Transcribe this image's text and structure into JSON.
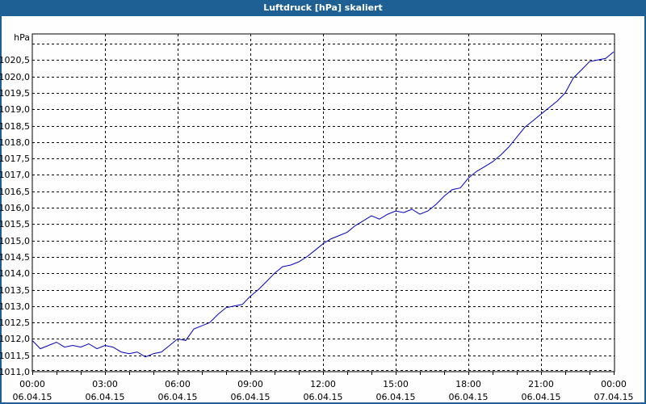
{
  "window": {
    "title": "Luftdruck [hPa] skaliert",
    "title_bar_color": "#1e6094"
  },
  "chart_data": {
    "type": "line",
    "title": "Luftdruck [hPa] skaliert",
    "xlabel": "",
    "ylabel": "hPa",
    "ylim": [
      1011.0,
      1021.0
    ],
    "grid": true,
    "line_color": "#0000c0",
    "y_ticks": [
      "1011,0",
      "1011,5",
      "1012,0",
      "1012,5",
      "1013,0",
      "1013,5",
      "1014,0",
      "1014,5",
      "1015,0",
      "1015,5",
      "1016,0",
      "1016,5",
      "1017,0",
      "1017,5",
      "1018,0",
      "1018,5",
      "1019,0",
      "1019,5",
      "1020,0",
      "1020,5"
    ],
    "x_ticks": [
      {
        "time": "00:00",
        "date": "06.04.15"
      },
      {
        "time": "03:00",
        "date": "06.04.15"
      },
      {
        "time": "06:00",
        "date": "06.04.15"
      },
      {
        "time": "09:00",
        "date": "06.04.15"
      },
      {
        "time": "12:00",
        "date": "06.04.15"
      },
      {
        "time": "15:00",
        "date": "06.04.15"
      },
      {
        "time": "18:00",
        "date": "06.04.15"
      },
      {
        "time": "21:00",
        "date": "06.04.15"
      },
      {
        "time": "00:00",
        "date": "07.04.15"
      }
    ],
    "series": [
      {
        "name": "Luftdruck",
        "x_hours": [
          0,
          0.33,
          0.67,
          1,
          1.33,
          1.67,
          2,
          2.33,
          2.67,
          3,
          3.33,
          3.67,
          4,
          4.33,
          4.67,
          5,
          5.33,
          5.67,
          6,
          6.33,
          6.67,
          7,
          7.33,
          7.67,
          8,
          8.33,
          8.67,
          9,
          9.33,
          9.67,
          10,
          10.33,
          10.67,
          11,
          11.33,
          11.67,
          12,
          12.33,
          12.67,
          13,
          13.33,
          13.67,
          14,
          14.33,
          14.67,
          15,
          15.33,
          15.67,
          16,
          16.33,
          16.67,
          17,
          17.33,
          17.67,
          18,
          18.33,
          18.67,
          19,
          19.33,
          19.67,
          20,
          20.33,
          20.67,
          21,
          21.33,
          21.67,
          22,
          22.33,
          22.67,
          23,
          23.33,
          23.67,
          24
        ],
        "values": [
          1011.95,
          1011.7,
          1011.8,
          1011.9,
          1011.75,
          1011.8,
          1011.75,
          1011.85,
          1011.7,
          1011.8,
          1011.75,
          1011.6,
          1011.55,
          1011.6,
          1011.45,
          1011.55,
          1011.6,
          1011.8,
          1012.0,
          1011.95,
          1012.3,
          1012.4,
          1012.5,
          1012.75,
          1012.95,
          1013.0,
          1013.05,
          1013.3,
          1013.5,
          1013.75,
          1014.0,
          1014.2,
          1014.25,
          1014.35,
          1014.5,
          1014.7,
          1014.9,
          1015.05,
          1015.15,
          1015.25,
          1015.45,
          1015.6,
          1015.75,
          1015.65,
          1015.8,
          1015.9,
          1015.85,
          1015.95,
          1015.8,
          1015.9,
          1016.1,
          1016.35,
          1016.55,
          1016.6,
          1016.9,
          1017.1,
          1017.25,
          1017.4,
          1017.6,
          1017.85,
          1018.15,
          1018.45,
          1018.65,
          1018.85,
          1019.05,
          1019.25,
          1019.5,
          1019.95,
          1020.2,
          1020.45,
          1020.5,
          1020.55,
          1020.75
        ]
      }
    ]
  }
}
